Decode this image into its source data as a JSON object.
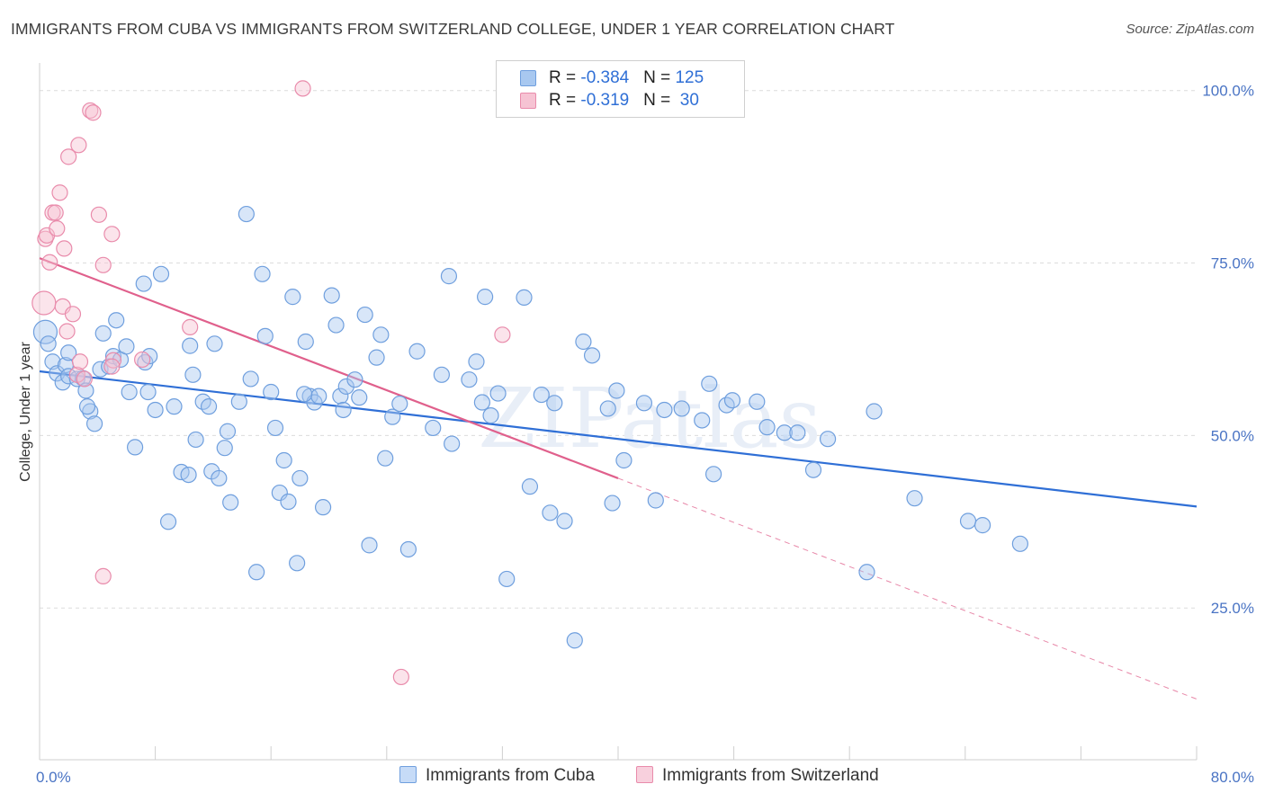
{
  "title": "IMMIGRANTS FROM CUBA VS IMMIGRANTS FROM SWITZERLAND COLLEGE, UNDER 1 YEAR CORRELATION CHART",
  "source": "Source: ZipAtlas.com",
  "watermark": "ZIPatlas",
  "legend": {
    "rows": [
      {
        "r_label": "R = ",
        "r_value": "-0.384",
        "n_label": "N = ",
        "n_value": "125",
        "color": "#a8c8f0",
        "border": "#6f9fde"
      },
      {
        "r_label": "R = ",
        "r_value": "-0.319",
        "n_label": "N = ",
        "n_value": "30",
        "color": "#f6c3d3",
        "border": "#e98bab"
      }
    ]
  },
  "bottom_legend": [
    {
      "label": "Immigrants from Cuba",
      "color": "#c6dbf7",
      "border": "#6f9fde"
    },
    {
      "label": "Immigrants from Switzerland",
      "color": "#f8d0dd",
      "border": "#e98bab"
    }
  ],
  "chart_data": {
    "type": "scatter",
    "title": "IMMIGRANTS FROM CUBA VS IMMIGRANTS FROM SWITZERLAND COLLEGE, UNDER 1 YEAR CORRELATION CHART",
    "xlabel": "",
    "ylabel": "College, Under 1 year",
    "xlim": [
      0,
      80
    ],
    "ylim": [
      3,
      104
    ],
    "x_tick_labels": [
      {
        "value": 0,
        "label": "0.0%"
      },
      {
        "value": 80,
        "label": "80.0%"
      }
    ],
    "y_tick_labels": [
      {
        "value": 100,
        "label": "100.0%"
      },
      {
        "value": 75,
        "label": "75.0%"
      },
      {
        "value": 50,
        "label": "50.0%"
      },
      {
        "value": 25,
        "label": "25.0%"
      }
    ],
    "grid": "horizontal dashed",
    "legend_position": "top-center",
    "series": [
      {
        "name": "Immigrants from Cuba",
        "color": "#6f9fde",
        "fill": "#a8c8f0",
        "trend": {
          "x": [
            0,
            80
          ],
          "y": [
            59.3,
            39.7
          ],
          "color": "#2f6fd6"
        },
        "points": [
          [
            0.4,
            65.0
          ],
          [
            0.6,
            63.3
          ],
          [
            0.9,
            60.7
          ],
          [
            1.2,
            59.0
          ],
          [
            1.6,
            57.7
          ],
          [
            1.8,
            60.2
          ],
          [
            2.0,
            58.6
          ],
          [
            2.6,
            58.2
          ],
          [
            3.0,
            58.3
          ],
          [
            3.2,
            56.5
          ],
          [
            2.0,
            62.0
          ],
          [
            3.5,
            53.5
          ],
          [
            3.3,
            54.2
          ],
          [
            3.8,
            51.7
          ],
          [
            4.2,
            59.6
          ],
          [
            4.4,
            64.8
          ],
          [
            4.8,
            60.0
          ],
          [
            5.1,
            61.5
          ],
          [
            5.6,
            61.0
          ],
          [
            5.3,
            66.7
          ],
          [
            6.0,
            62.9
          ],
          [
            6.2,
            56.3
          ],
          [
            6.6,
            48.3
          ],
          [
            7.3,
            60.6
          ],
          [
            7.5,
            56.3
          ],
          [
            7.6,
            61.5
          ],
          [
            7.2,
            72.0
          ],
          [
            8.0,
            53.7
          ],
          [
            8.4,
            73.4
          ],
          [
            8.9,
            37.5
          ],
          [
            9.3,
            54.2
          ],
          [
            9.8,
            44.7
          ],
          [
            10.3,
            44.3
          ],
          [
            10.4,
            63.0
          ],
          [
            10.6,
            58.8
          ],
          [
            10.8,
            49.4
          ],
          [
            11.3,
            54.9
          ],
          [
            11.7,
            54.2
          ],
          [
            11.9,
            44.8
          ],
          [
            12.1,
            63.3
          ],
          [
            12.4,
            43.8
          ],
          [
            12.8,
            48.2
          ],
          [
            13.0,
            50.6
          ],
          [
            13.2,
            40.3
          ],
          [
            13.8,
            54.9
          ],
          [
            14.3,
            82.1
          ],
          [
            14.6,
            58.2
          ],
          [
            15.0,
            30.2
          ],
          [
            15.4,
            73.4
          ],
          [
            15.6,
            64.4
          ],
          [
            16.0,
            56.3
          ],
          [
            16.3,
            51.1
          ],
          [
            16.6,
            41.7
          ],
          [
            16.9,
            46.4
          ],
          [
            17.2,
            40.4
          ],
          [
            17.5,
            70.1
          ],
          [
            17.8,
            31.5
          ],
          [
            18.0,
            43.8
          ],
          [
            18.4,
            63.6
          ],
          [
            18.7,
            55.7
          ],
          [
            19.0,
            54.8
          ],
          [
            19.3,
            55.7
          ],
          [
            19.6,
            39.6
          ],
          [
            20.2,
            70.3
          ],
          [
            20.5,
            66.0
          ],
          [
            20.8,
            55.7
          ],
          [
            21.0,
            53.7
          ],
          [
            21.2,
            57.1
          ],
          [
            21.8,
            58.1
          ],
          [
            22.1,
            55.5
          ],
          [
            22.5,
            67.5
          ],
          [
            22.8,
            34.1
          ],
          [
            23.3,
            61.3
          ],
          [
            23.6,
            64.6
          ],
          [
            23.9,
            46.7
          ],
          [
            24.4,
            52.7
          ],
          [
            24.9,
            54.6
          ],
          [
            25.5,
            33.5
          ],
          [
            26.1,
            62.2
          ],
          [
            27.2,
            51.1
          ],
          [
            27.8,
            58.8
          ],
          [
            28.3,
            73.1
          ],
          [
            28.5,
            48.8
          ],
          [
            29.7,
            58.1
          ],
          [
            30.2,
            60.7
          ],
          [
            30.8,
            70.1
          ],
          [
            30.6,
            54.8
          ],
          [
            31.2,
            52.9
          ],
          [
            31.7,
            56.1
          ],
          [
            32.3,
            29.2
          ],
          [
            33.5,
            70.0
          ],
          [
            33.9,
            42.6
          ],
          [
            34.7,
            55.9
          ],
          [
            35.3,
            38.8
          ],
          [
            35.6,
            54.7
          ],
          [
            36.3,
            37.6
          ],
          [
            37.0,
            20.3
          ],
          [
            37.6,
            63.6
          ],
          [
            38.2,
            61.6
          ],
          [
            39.3,
            53.9
          ],
          [
            39.6,
            40.2
          ],
          [
            39.9,
            56.5
          ],
          [
            40.4,
            46.4
          ],
          [
            41.8,
            54.7
          ],
          [
            42.6,
            40.6
          ],
          [
            43.2,
            53.7
          ],
          [
            44.4,
            53.9
          ],
          [
            45.8,
            52.2
          ],
          [
            46.3,
            57.5
          ],
          [
            46.6,
            44.4
          ],
          [
            47.5,
            54.4
          ],
          [
            47.9,
            55.1
          ],
          [
            49.6,
            54.9
          ],
          [
            50.3,
            51.2
          ],
          [
            51.5,
            50.4
          ],
          [
            52.4,
            50.4
          ],
          [
            53.5,
            45.0
          ],
          [
            54.5,
            49.5
          ],
          [
            57.2,
            30.2
          ],
          [
            57.7,
            53.5
          ],
          [
            60.5,
            40.9
          ],
          [
            64.2,
            37.6
          ],
          [
            65.2,
            37.0
          ],
          [
            67.8,
            34.3
          ],
          [
            18.3,
            56.0
          ]
        ]
      },
      {
        "name": "Immigrants from Switzerland",
        "color": "#e98bab",
        "fill": "#f6c3d3",
        "trend": {
          "x": [
            0,
            40
          ],
          "y": [
            75.7,
            43.8
          ],
          "color": "#e0608c"
        },
        "trend_extension": {
          "x": [
            40,
            80
          ],
          "y": [
            43.8,
            11.8
          ]
        },
        "points": [
          [
            0.3,
            69.2
          ],
          [
            0.4,
            78.5
          ],
          [
            0.5,
            79.0
          ],
          [
            0.7,
            75.1
          ],
          [
            0.9,
            82.3
          ],
          [
            1.1,
            82.3
          ],
          [
            1.2,
            80.0
          ],
          [
            1.4,
            85.2
          ],
          [
            1.6,
            68.7
          ],
          [
            1.7,
            77.1
          ],
          [
            1.9,
            65.1
          ],
          [
            2.0,
            90.4
          ],
          [
            2.3,
            67.6
          ],
          [
            2.6,
            58.8
          ],
          [
            2.7,
            92.1
          ],
          [
            2.8,
            60.7
          ],
          [
            3.1,
            58.2
          ],
          [
            3.5,
            97.1
          ],
          [
            3.7,
            96.8
          ],
          [
            4.1,
            82.0
          ],
          [
            4.4,
            74.7
          ],
          [
            5.0,
            79.2
          ],
          [
            5.1,
            60.9
          ],
          [
            7.1,
            61.0
          ],
          [
            4.4,
            29.6
          ],
          [
            10.4,
            65.7
          ],
          [
            18.2,
            100.3
          ],
          [
            25.0,
            15.0
          ],
          [
            32.0,
            64.6
          ],
          [
            5.0,
            60.0
          ]
        ]
      }
    ]
  }
}
